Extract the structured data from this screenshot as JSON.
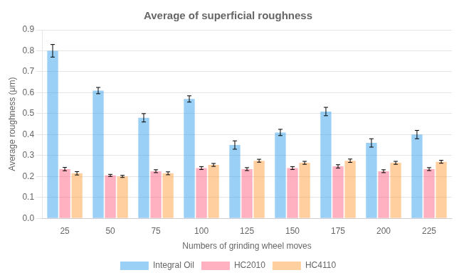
{
  "chart_data": {
    "type": "bar",
    "title": "Average of superficial roughness",
    "xlabel": "Numbers of grinding wheel moves",
    "ylabel": "Average roughness (μm)",
    "categories": [
      25,
      50,
      75,
      100,
      125,
      150,
      175,
      200,
      225
    ],
    "series": [
      {
        "name": "Integral Oil",
        "values": [
          0.8,
          0.61,
          0.48,
          0.57,
          0.35,
          0.41,
          0.51,
          0.36,
          0.4
        ],
        "errors": [
          0.03,
          0.015,
          0.02,
          0.015,
          0.02,
          0.015,
          0.02,
          0.02,
          0.02
        ]
      },
      {
        "name": "HC2010",
        "values": [
          0.235,
          0.205,
          0.225,
          0.24,
          0.235,
          0.24,
          0.248,
          0.225,
          0.235
        ],
        "errors": [
          0.008,
          0.005,
          0.007,
          0.007,
          0.007,
          0.007,
          0.008,
          0.007,
          0.007
        ]
      },
      {
        "name": "HC4110",
        "values": [
          0.215,
          0.2,
          0.215,
          0.255,
          0.275,
          0.265,
          0.275,
          0.265,
          0.27
        ],
        "errors": [
          0.008,
          0.005,
          0.007,
          0.007,
          0.007,
          0.007,
          0.008,
          0.007,
          0.007
        ]
      }
    ],
    "ylim": [
      0.0,
      0.9
    ],
    "yticks": [
      {
        "value": 0.0,
        "label": "0.0"
      },
      0.1,
      0.2,
      0.3,
      0.4,
      0.5,
      0.6,
      0.7,
      0.8,
      0.9
    ],
    "grid": true,
    "legend": "bottom"
  }
}
